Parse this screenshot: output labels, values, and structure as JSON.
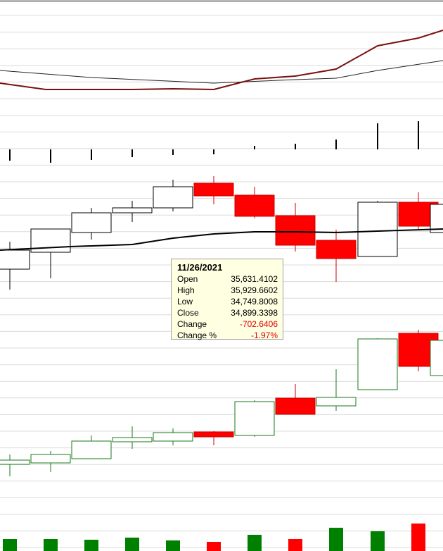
{
  "tooltip": {
    "date": "11/26/2021",
    "rows": [
      {
        "label": "Open",
        "value": "35,631.4102"
      },
      {
        "label": "High",
        "value": "35,929.6602"
      },
      {
        "label": "Low",
        "value": "34,749.8008"
      },
      {
        "label": "Close",
        "value": "34,899.3398"
      },
      {
        "label": "Change",
        "value": "-702.6406"
      },
      {
        "label": "Change %",
        "value": "-1.97%"
      }
    ]
  }
}
